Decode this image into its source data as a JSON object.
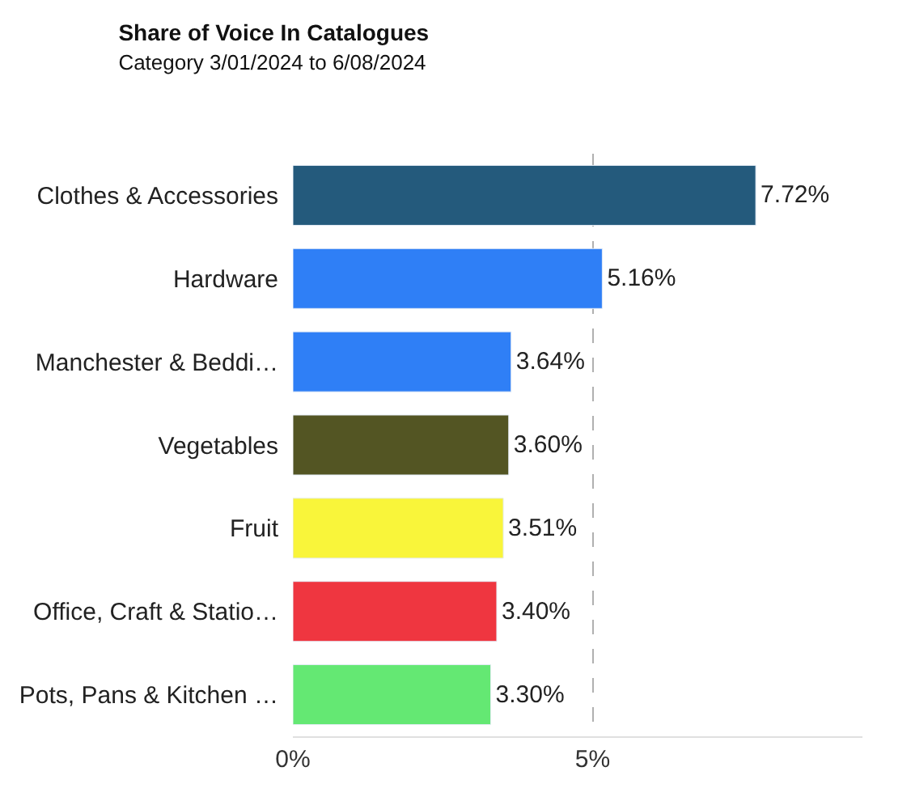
{
  "chart_data": {
    "type": "bar",
    "orientation": "horizontal",
    "title": "Share of Voice In Catalogues",
    "subtitle": "Category 3/01/2024 to 6/08/2024",
    "categories": [
      "Clothes & Accessories",
      "Hardware",
      "Manchester & Beddi…",
      "Vegetables",
      "Fruit",
      "Office, Craft & Statio…",
      "Pots, Pans & Kitchen …"
    ],
    "values": [
      7.72,
      5.16,
      3.64,
      3.6,
      3.51,
      3.4,
      3.3
    ],
    "value_labels": [
      "7.72%",
      "5.16%",
      "3.64%",
      "3.60%",
      "3.51%",
      "3.40%",
      "3.30%"
    ],
    "colors": [
      "#245a7c",
      "#2f7ff6",
      "#2f7ff6",
      "#535523",
      "#f9f53a",
      "#ef3640",
      "#64e873"
    ],
    "xticks": [
      {
        "value": 0,
        "label": "0%"
      },
      {
        "value": 5,
        "label": "5%"
      }
    ],
    "xlim": [
      0,
      9.5
    ],
    "grid": "x"
  }
}
